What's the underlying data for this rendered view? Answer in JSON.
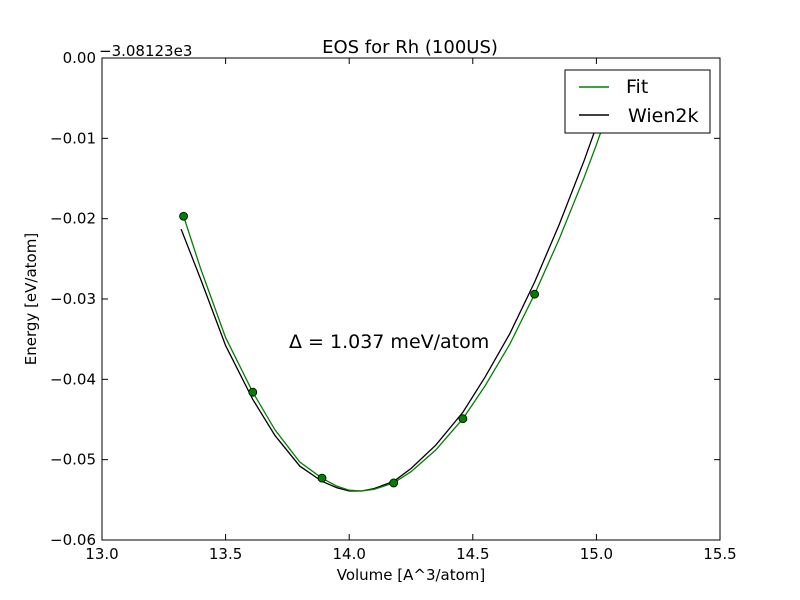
{
  "chart_data": {
    "type": "line",
    "title": "EOS for Rh (100US)",
    "xlabel": "Volume [A^3/atom]",
    "ylabel": "Energy [eV/atom]",
    "y_offset_label": "−3.08123e3",
    "xlim": [
      13.0,
      15.5
    ],
    "ylim": [
      -0.06,
      0.0
    ],
    "x_ticks": [
      13.0,
      13.5,
      14.0,
      14.5,
      15.0,
      15.5
    ],
    "x_tick_labels": [
      "13.0",
      "13.5",
      "14.0",
      "14.5",
      "15.0",
      "15.5"
    ],
    "y_ticks": [
      0.0,
      -0.01,
      -0.02,
      -0.03,
      -0.04,
      -0.05,
      -0.06
    ],
    "y_tick_labels": [
      "0.00",
      "−0.01",
      "−0.02",
      "−0.03",
      "−0.04",
      "−0.05",
      "−0.06"
    ],
    "grid": false,
    "legend_position": "top-right",
    "annotation": "Δ = 1.037 meV/atom",
    "points": {
      "x": [
        13.33,
        13.61,
        13.89,
        14.18,
        14.46,
        14.75
      ],
      "y": [
        -0.0197,
        -0.0416,
        -0.0523,
        -0.0529,
        -0.0449,
        -0.0294
      ],
      "color": "#008000"
    },
    "series": [
      {
        "name": "Fit",
        "color": "#008000",
        "x": [
          13.33,
          13.4,
          13.5,
          13.61,
          13.7,
          13.8,
          13.89,
          13.95,
          14.0,
          14.05,
          14.1,
          14.18,
          14.25,
          14.35,
          14.46,
          14.55,
          14.65,
          14.75,
          14.85,
          14.95,
          15.0,
          15.05
        ],
        "y": [
          -0.0197,
          -0.0263,
          -0.0348,
          -0.0416,
          -0.0463,
          -0.0503,
          -0.0523,
          -0.0533,
          -0.0538,
          -0.0539,
          -0.0537,
          -0.0529,
          -0.0515,
          -0.0488,
          -0.0449,
          -0.0408,
          -0.0356,
          -0.0294,
          -0.0225,
          -0.0149,
          -0.0108,
          -0.0064
        ]
      },
      {
        "name": "Wien2k",
        "color": "#000000",
        "x": [
          13.32,
          13.4,
          13.5,
          13.61,
          13.7,
          13.8,
          13.89,
          13.95,
          14.0,
          14.05,
          14.1,
          14.18,
          14.25,
          14.35,
          14.46,
          14.55,
          14.65,
          14.75,
          14.85,
          14.95,
          15.0,
          15.05
        ],
        "y": [
          -0.0213,
          -0.0276,
          -0.0358,
          -0.0425,
          -0.047,
          -0.0508,
          -0.0527,
          -0.0535,
          -0.0539,
          -0.0539,
          -0.0536,
          -0.0527,
          -0.0511,
          -0.0482,
          -0.0441,
          -0.0397,
          -0.0343,
          -0.0279,
          -0.0207,
          -0.0128,
          -0.0085,
          -0.004
        ]
      }
    ]
  }
}
